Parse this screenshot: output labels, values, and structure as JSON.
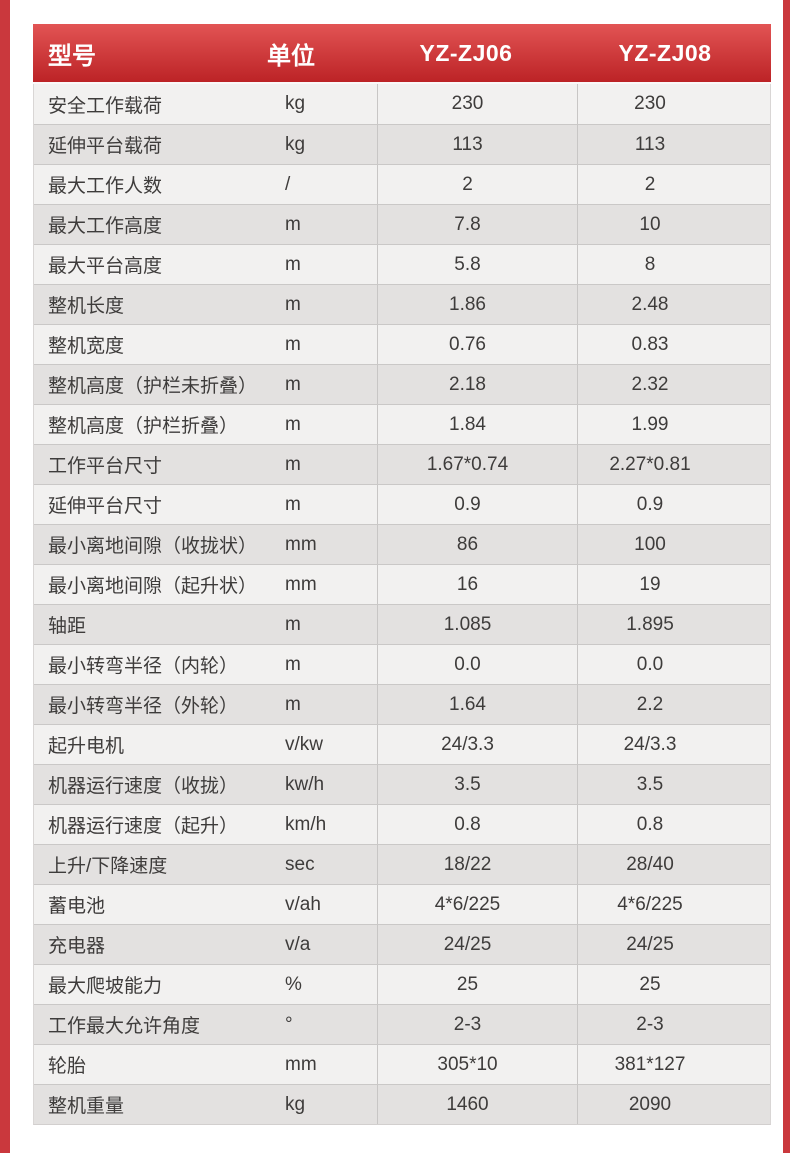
{
  "colors": {
    "side_stripe": "#ca383d",
    "header_gradient_top": "#e25454",
    "header_gradient_bottom": "#bc2326",
    "header_text": "#ffffff",
    "row_light": "#f2f1f0",
    "row_dark": "#e3e1e0",
    "row_border": "#cac8c7",
    "body_text": "#3e3c3b"
  },
  "table": {
    "columns": [
      "型号",
      "单位",
      "YZ-ZJ06",
      "YZ-ZJ08"
    ],
    "rows": [
      {
        "label": "安全工作载荷",
        "unit": "kg",
        "yz_zj06": "230",
        "yz_zj08": "230"
      },
      {
        "label": "延伸平台载荷",
        "unit": "kg",
        "yz_zj06": "113",
        "yz_zj08": "113"
      },
      {
        "label": "最大工作人数",
        "unit": "/",
        "yz_zj06": "2",
        "yz_zj08": "2"
      },
      {
        "label": "最大工作高度",
        "unit": "m",
        "yz_zj06": "7.8",
        "yz_zj08": "10"
      },
      {
        "label": "最大平台高度",
        "unit": "m",
        "yz_zj06": "5.8",
        "yz_zj08": "8"
      },
      {
        "label": "整机长度",
        "unit": "m",
        "yz_zj06": "1.86",
        "yz_zj08": "2.48"
      },
      {
        "label": "整机宽度",
        "unit": "m",
        "yz_zj06": "0.76",
        "yz_zj08": "0.83"
      },
      {
        "label": "整机高度（护栏未折叠）",
        "unit": "m",
        "yz_zj06": "2.18",
        "yz_zj08": "2.32"
      },
      {
        "label": "整机高度（护栏折叠）",
        "unit": "m",
        "yz_zj06": "1.84",
        "yz_zj08": "1.99"
      },
      {
        "label": "工作平台尺寸",
        "unit": "m",
        "yz_zj06": "1.67*0.74",
        "yz_zj08": "2.27*0.81"
      },
      {
        "label": "延伸平台尺寸",
        "unit": "m",
        "yz_zj06": "0.9",
        "yz_zj08": "0.9"
      },
      {
        "label": "最小离地间隙（收拢状）",
        "unit": "mm",
        "yz_zj06": "86",
        "yz_zj08": "100"
      },
      {
        "label": "最小离地间隙（起升状）",
        "unit": "mm",
        "yz_zj06": "16",
        "yz_zj08": "19"
      },
      {
        "label": "轴距",
        "unit": "m",
        "yz_zj06": "1.085",
        "yz_zj08": "1.895"
      },
      {
        "label": "最小转弯半径（内轮）",
        "unit": "m",
        "yz_zj06": "0.0",
        "yz_zj08": "0.0"
      },
      {
        "label": "最小转弯半径（外轮）",
        "unit": "m",
        "yz_zj06": "1.64",
        "yz_zj08": "2.2"
      },
      {
        "label": "起升电机",
        "unit": "v/kw",
        "yz_zj06": "24/3.3",
        "yz_zj08": "24/3.3"
      },
      {
        "label": "机器运行速度（收拢）",
        "unit": "kw/h",
        "yz_zj06": "3.5",
        "yz_zj08": "3.5"
      },
      {
        "label": "机器运行速度（起升）",
        "unit": "km/h",
        "yz_zj06": "0.8",
        "yz_zj08": "0.8"
      },
      {
        "label": "上升/下降速度",
        "unit": "sec",
        "yz_zj06": "18/22",
        "yz_zj08": "28/40"
      },
      {
        "label": "蓄电池",
        "unit": "v/ah",
        "yz_zj06": "4*6/225",
        "yz_zj08": "4*6/225"
      },
      {
        "label": "充电器",
        "unit": "v/a",
        "yz_zj06": "24/25",
        "yz_zj08": "24/25"
      },
      {
        "label": "最大爬坡能力",
        "unit": "%",
        "yz_zj06": "25",
        "yz_zj08": "25"
      },
      {
        "label": "工作最大允许角度",
        "unit": "°",
        "yz_zj06": "2-3",
        "yz_zj08": "2-3"
      },
      {
        "label": "轮胎",
        "unit": "mm",
        "yz_zj06": "305*10",
        "yz_zj08": "381*127"
      },
      {
        "label": "整机重量",
        "unit": "kg",
        "yz_zj06": "1460",
        "yz_zj08": "2090"
      }
    ]
  }
}
